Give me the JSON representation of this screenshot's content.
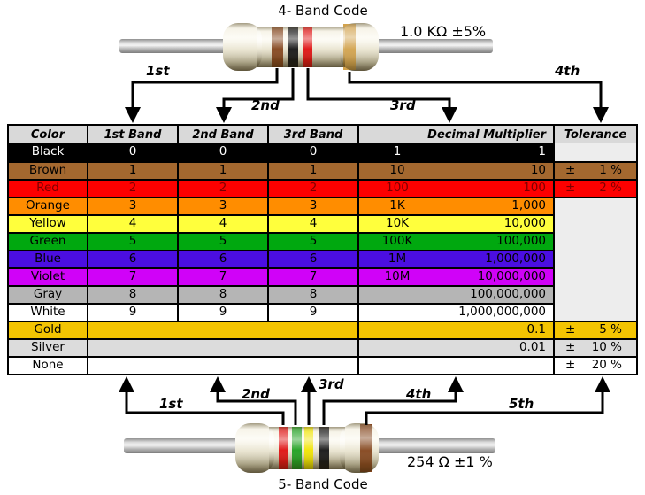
{
  "top_resistor": {
    "title": "4- Band Code",
    "value_label": "1.0 KΩ  ±5%",
    "bands": [
      "brown",
      "black",
      "red",
      "gold"
    ],
    "arrow_labels": [
      "1st",
      "2nd",
      "3rd",
      "4th"
    ]
  },
  "bottom_resistor": {
    "title": "5- Band Code",
    "value_label": "254 Ω  ±1 %",
    "bands": [
      "red",
      "green",
      "yellow",
      "black",
      "brown"
    ],
    "arrow_labels": [
      "1st",
      "2nd",
      "3rd",
      "4th",
      "5th"
    ]
  },
  "band_palette": {
    "brown": "#84451c",
    "black": "#141414",
    "red": "#df1010",
    "gold": "#d2a24c",
    "green": "#1fa01f",
    "yellow": "#f0e400"
  },
  "table": {
    "headers": [
      "Color",
      "1st Band",
      "2nd Band",
      "3rd Band",
      "Decimal Multiplier",
      "Tolerance"
    ],
    "blank_tolerance_color": "#ededed",
    "rows": [
      {
        "color": "Black",
        "bg": "#000000",
        "fg": "#ffffff",
        "b1": "0",
        "b2": "0",
        "b3": "0",
        "mult_prefix": "1",
        "mult_value": "1",
        "tol_sign": "",
        "tol_value": "",
        "tol_mode": "blank",
        "merged_bands": false
      },
      {
        "color": "Brown",
        "bg": "#a4682f",
        "fg": "#000000",
        "b1": "1",
        "b2": "1",
        "b3": "1",
        "mult_prefix": "10",
        "mult_value": "10",
        "tol_sign": "±",
        "tol_value": "1 %",
        "tol_mode": "value",
        "merged_bands": false
      },
      {
        "color": "Red",
        "bg": "#fd0000",
        "fg": "#7c0000",
        "b1": "2",
        "b2": "2",
        "b3": "2",
        "mult_prefix": "100",
        "mult_value": "100",
        "tol_sign": "±",
        "tol_value": "2 %",
        "tol_mode": "value",
        "merged_bands": false
      },
      {
        "color": "Orange",
        "bg": "#ff8d00",
        "fg": "#000000",
        "b1": "3",
        "b2": "3",
        "b3": "3",
        "mult_prefix": "1K",
        "mult_value": "1,000",
        "tol_sign": "",
        "tol_value": "",
        "tol_mode": "blank",
        "merged_bands": false
      },
      {
        "color": "Yellow",
        "bg": "#ffff3c",
        "fg": "#000000",
        "b1": "4",
        "b2": "4",
        "b3": "4",
        "mult_prefix": "10K",
        "mult_value": "10,000",
        "tol_sign": "",
        "tol_value": "",
        "tol_mode": "merged",
        "merged_bands": false
      },
      {
        "color": "Green",
        "bg": "#00a80f",
        "fg": "#000000",
        "b1": "5",
        "b2": "5",
        "b3": "5",
        "mult_prefix": "100K",
        "mult_value": "100,000",
        "tol_sign": "",
        "tol_value": "",
        "tol_mode": "merged",
        "merged_bands": false
      },
      {
        "color": "Blue",
        "bg": "#4b0ee1",
        "fg": "#000000",
        "b1": "6",
        "b2": "6",
        "b3": "6",
        "mult_prefix": "1M",
        "mult_value": "1,000,000",
        "tol_sign": "",
        "tol_value": "",
        "tol_mode": "merged",
        "merged_bands": false
      },
      {
        "color": "Violet",
        "bg": "#d002f8",
        "fg": "#000000",
        "b1": "7",
        "b2": "7",
        "b3": "7",
        "mult_prefix": "10M",
        "mult_value": "10,000,000",
        "tol_sign": "",
        "tol_value": "",
        "tol_mode": "merged",
        "merged_bands": false
      },
      {
        "color": "Gray",
        "bg": "#b5b5b5",
        "fg": "#000000",
        "b1": "8",
        "b2": "8",
        "b3": "8",
        "mult_prefix": "",
        "mult_value": "100,000,000",
        "tol_sign": "",
        "tol_value": "",
        "tol_mode": "merged",
        "merged_bands": false
      },
      {
        "color": "White",
        "bg": "#ffffff",
        "fg": "#000000",
        "b1": "9",
        "b2": "9",
        "b3": "9",
        "mult_prefix": "",
        "mult_value": "1,000,000,000",
        "tol_sign": "",
        "tol_value": "",
        "tol_mode": "merged",
        "merged_bands": false
      },
      {
        "color": "Gold",
        "bg": "#f3c402",
        "fg": "#000000",
        "b1": "",
        "b2": "",
        "b3": "",
        "mult_prefix": "",
        "mult_value": "0.1",
        "tol_sign": "±",
        "tol_value": "5 %",
        "tol_mode": "value",
        "merged_bands": true
      },
      {
        "color": "Silver",
        "bg": "#dcdcdc",
        "fg": "#000000",
        "b1": "",
        "b2": "",
        "b3": "",
        "mult_prefix": "",
        "mult_value": "0.01",
        "tol_sign": "±",
        "tol_value": "10 %",
        "tol_mode": "value",
        "merged_bands": true
      },
      {
        "color": "None",
        "bg": "#ffffff",
        "fg": "#000000",
        "b1": "",
        "b2": "",
        "b3": "",
        "mult_prefix": "",
        "mult_value": "",
        "tol_sign": "±",
        "tol_value": "20 %",
        "tol_mode": "value",
        "merged_bands": true
      }
    ]
  }
}
